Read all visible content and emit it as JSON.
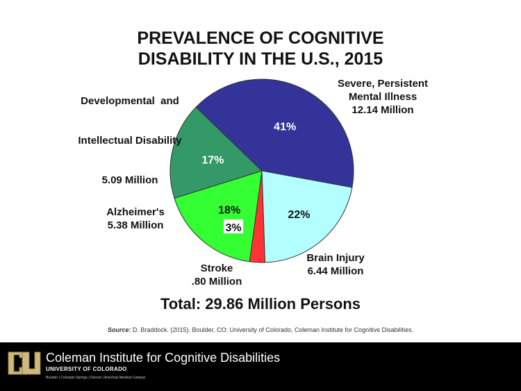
{
  "chart_data": {
    "type": "pie",
    "title_lines": [
      "PREVALENCE OF COGNITIVE",
      "DISABILITY IN THE U.S., 2015"
    ],
    "slices": [
      {
        "category": [
          "Severe, Persistent",
          "Mental Illness"
        ],
        "value": 12.14,
        "value_label": "12.14 Million",
        "percent_label": "41%",
        "color": "#333399"
      },
      {
        "category": [
          "Brain Injury"
        ],
        "value": 6.44,
        "value_label": "6.44 Million",
        "percent_label": "22%",
        "color": "#b3ffff"
      },
      {
        "category": [
          "Stroke"
        ],
        "value": 0.8,
        "value_label": ".80 Million",
        "percent_label": "3%",
        "color": "#ff3333"
      },
      {
        "category": [
          "Alzheimer's"
        ],
        "value": 5.38,
        "value_label": "5.38 Million",
        "percent_label": "18%",
        "color": "#33ff33"
      },
      {
        "category": [
          "Developmental  and",
          "Intellectual Disability"
        ],
        "value": 5.09,
        "value_label": "5.09 Million",
        "percent_label": "17%",
        "color": "#339966"
      }
    ],
    "total_label": "Total: 29.86 Million Persons"
  },
  "source": {
    "prefix": "Source:",
    "text": " D. Braddock. (2015). Boulder, CO: University of Colorado, Coleman Institute for Cognitive Disabilities."
  },
  "footer": {
    "logo_icon": "cu-logo-icon",
    "institute": "Coleman Institute for Cognitive Disabilities",
    "university": "UNIVERSITY OF COLORADO",
    "campuses": "Boulder | Colorado Springs | Denver | Anschutz Medical Campus",
    "background": "#000000",
    "logo_color": "#cfb87c"
  }
}
